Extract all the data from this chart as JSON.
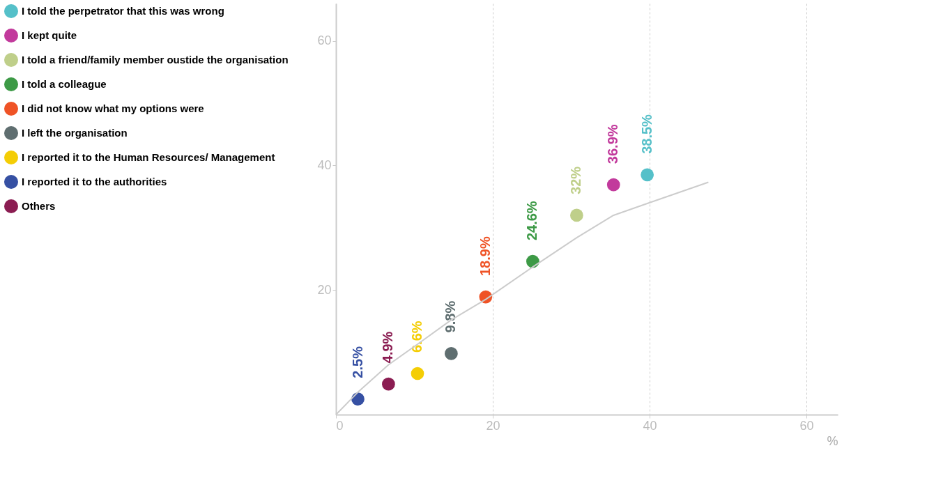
{
  "chart_data": {
    "type": "scatter",
    "xlabel": "%",
    "xlim": [
      0,
      64
    ],
    "ylim": [
      0,
      66
    ],
    "xticks": [
      0,
      20,
      40,
      60
    ],
    "yticks": [
      20,
      40,
      60
    ],
    "grid": "x",
    "legend": "left",
    "marker": "circle",
    "series": [
      {
        "name": "I told the perpetrator that this was wrong",
        "color": "#55c0c9",
        "x": [
          39.7
        ],
        "values": [
          38.5
        ],
        "value_labels": [
          "38.5%"
        ]
      },
      {
        "name": "I kept quite",
        "color": "#c23a9c",
        "x": [
          35.4
        ],
        "values": [
          36.9
        ],
        "value_labels": [
          "36.9%"
        ]
      },
      {
        "name": "I told a friend/family member oustide the organisation",
        "color": "#bfcf8a",
        "x": [
          30.7
        ],
        "values": [
          32
        ],
        "value_labels": [
          "32%"
        ]
      },
      {
        "name": "I told a colleague",
        "color": "#3d9a46",
        "x": [
          25.1
        ],
        "values": [
          24.6
        ],
        "value_labels": [
          "24.6%"
        ]
      },
      {
        "name": "I did not know what my options were",
        "color": "#ef5326",
        "x": [
          19.1
        ],
        "values": [
          18.9
        ],
        "value_labels": [
          "18.9%"
        ]
      },
      {
        "name": "I left the organisation",
        "color": "#5f6e70",
        "x": [
          14.7
        ],
        "values": [
          9.8
        ],
        "value_labels": [
          "9.8%"
        ]
      },
      {
        "name": "I reported it to the Human Resources/ Management",
        "color": "#f4cd05",
        "x": [
          10.4
        ],
        "values": [
          6.6
        ],
        "value_labels": [
          "6.6%"
        ]
      },
      {
        "name": "I reported it to the authorities",
        "color": "#3650a3",
        "x": [
          2.8
        ],
        "values": [
          2.5
        ],
        "value_labels": [
          "2.5%"
        ]
      },
      {
        "name": "Others",
        "color": "#8b1d52",
        "x": [
          6.7
        ],
        "values": [
          4.9
        ],
        "value_labels": [
          "4.9%"
        ]
      },
      {
        "type": "line",
        "marker": "none",
        "color": "#cccccc",
        "x": [
          0,
          2.8,
          6.7,
          10.4,
          14.7,
          19.1,
          25.1,
          30.7,
          35.4,
          39.7,
          47.5
        ],
        "values": [
          0,
          3.6,
          8.0,
          11.3,
          15.2,
          18.5,
          23.7,
          28.4,
          32.0,
          33.9,
          37.3
        ]
      }
    ]
  }
}
